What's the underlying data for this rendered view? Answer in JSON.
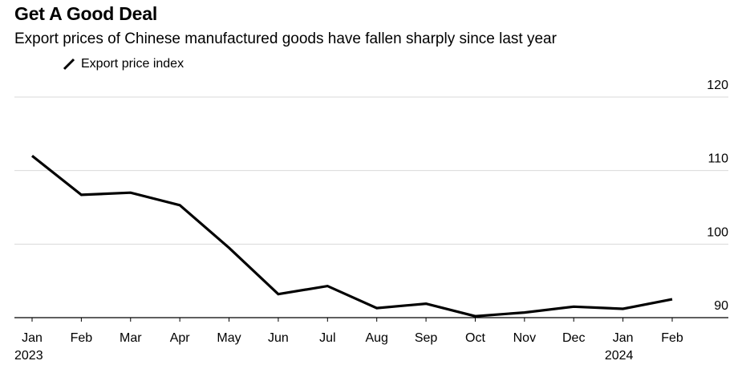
{
  "title": "Get A Good Deal",
  "subtitle": "Export prices of Chinese manufactured goods have fallen sharply since last year",
  "chart_data": {
    "type": "line",
    "title": "Get A Good Deal",
    "subtitle": "Export prices of Chinese manufactured goods have fallen sharply since last year",
    "xlabel": "",
    "ylabel": "",
    "categories": [
      "Jan",
      "Feb",
      "Mar",
      "Apr",
      "May",
      "Jun",
      "Jul",
      "Aug",
      "Sep",
      "Oct",
      "Nov",
      "Dec",
      "Jan",
      "Feb"
    ],
    "year_labels": [
      {
        "index": 0,
        "label": "2023"
      },
      {
        "index": 12,
        "label": "2024"
      }
    ],
    "series": [
      {
        "name": "Export price index",
        "color": "#000000",
        "values": [
          112.0,
          106.7,
          107.0,
          105.3,
          99.5,
          93.2,
          94.3,
          91.3,
          91.9,
          90.2,
          90.7,
          91.5,
          91.2,
          92.5
        ]
      }
    ],
    "ylim": [
      90,
      120
    ],
    "yticks": [
      90,
      100,
      110,
      120
    ],
    "grid": true,
    "y_axis_position": "right",
    "legend_position": "top-left"
  }
}
